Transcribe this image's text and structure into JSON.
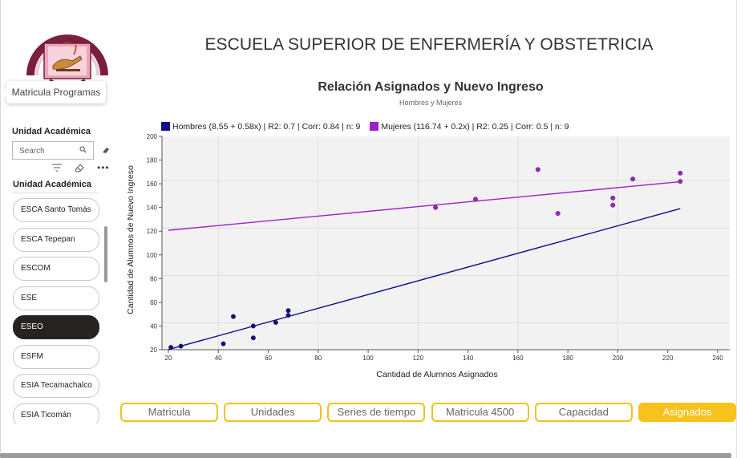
{
  "header": {
    "title": "ESCUELA SUPERIOR DE ENFERMERÍA Y OBSTETRICIA",
    "logo_text": "I P N"
  },
  "tooltip": {
    "text": "Matricula Programas"
  },
  "slicer": {
    "header": "Unidad Académica",
    "search_placeholder": "Search",
    "title": "Unidad Académica",
    "items": [
      {
        "label": "ESCA Santo Tomás",
        "selected": false
      },
      {
        "label": "ESCA Tepepan",
        "selected": false
      },
      {
        "label": "ESCOM",
        "selected": false
      },
      {
        "label": "ESE",
        "selected": false
      },
      {
        "label": "ESEO",
        "selected": true
      },
      {
        "label": "ESFM",
        "selected": false
      },
      {
        "label": "ESIA Tecamachalco",
        "selected": false
      },
      {
        "label": "ESIA Ticomán",
        "selected": false
      }
    ]
  },
  "chart": {
    "title": "Relación Asignados y Nuevo Ingreso",
    "subtitle": "Hombres y Mujeres"
  },
  "chart_data": {
    "type": "scatter",
    "title": "Relación Asignados y Nuevo Ingreso",
    "subtitle": "Hombres y Mujeres",
    "xlabel": "Cantidad de Alumnos Asignados",
    "ylabel": "Cantidad de Alumnos de Nuevo Ingreso",
    "xlim": [
      20,
      240
    ],
    "ylim": [
      20,
      200
    ],
    "xticks": [
      20,
      40,
      60,
      80,
      100,
      120,
      140,
      160,
      180,
      200,
      220,
      240
    ],
    "yticks": [
      20,
      40,
      60,
      80,
      100,
      120,
      140,
      160,
      180,
      200
    ],
    "grid": true,
    "legend_position": "top-left",
    "series": [
      {
        "name": "Hombres (8.55 + 0.58x) | R2: 0.7 | Corr: 0.84 | n: 9",
        "color": "#0d0d8a",
        "points": [
          [
            21,
            22
          ],
          [
            25,
            23
          ],
          [
            42,
            25
          ],
          [
            46,
            48
          ],
          [
            54,
            40
          ],
          [
            54,
            30
          ],
          [
            63,
            43
          ],
          [
            68,
            49
          ],
          [
            68,
            53
          ]
        ],
        "trendline": {
          "intercept": 8.55,
          "slope": 0.58,
          "x_range": [
            20,
            225
          ]
        }
      },
      {
        "name": "Mujeres (116.74 + 0.2x) | R2: 0.25 | Corr: 0.5 | n: 9",
        "color": "#a020c8",
        "points": [
          [
            127,
            140
          ],
          [
            143,
            147
          ],
          [
            168,
            172
          ],
          [
            176,
            135
          ],
          [
            198,
            142
          ],
          [
            198,
            148
          ],
          [
            206,
            164
          ],
          [
            225,
            169
          ],
          [
            225,
            162
          ]
        ],
        "trendline": {
          "intercept": 116.74,
          "slope": 0.2,
          "x_range": [
            20,
            225
          ]
        }
      }
    ]
  },
  "tabs": [
    {
      "label": "Matricula",
      "active": false
    },
    {
      "label": "Unidades",
      "active": false
    },
    {
      "label": "Series de tiempo",
      "active": false
    },
    {
      "label": "Matricula 4500",
      "active": false
    },
    {
      "label": "Capacidad",
      "active": false
    },
    {
      "label": "Asignados",
      "active": true
    }
  ]
}
